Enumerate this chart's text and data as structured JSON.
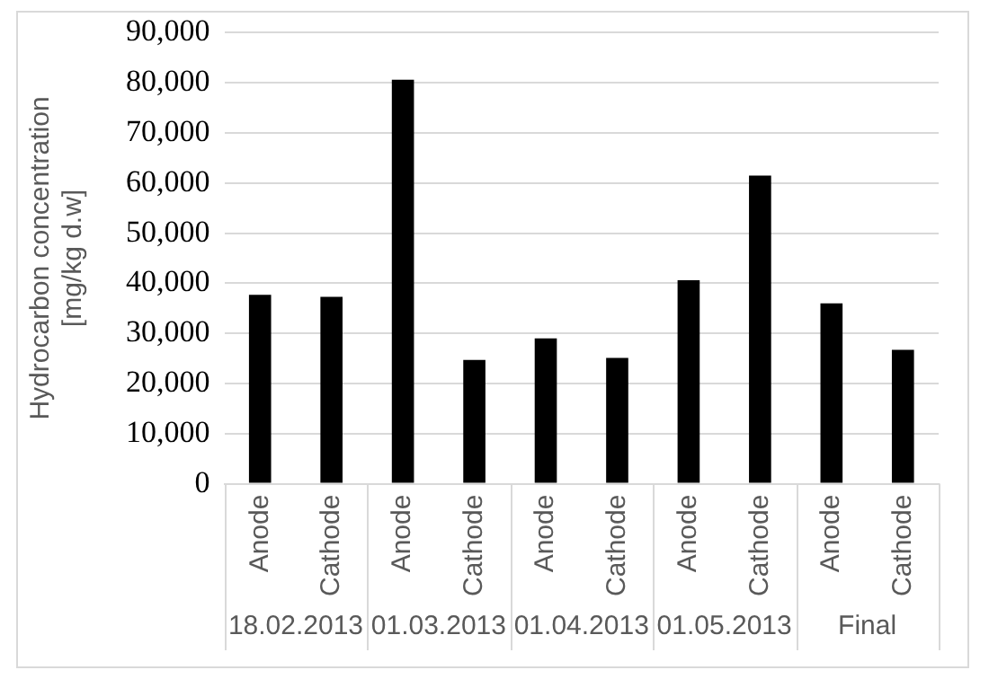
{
  "chart_data": {
    "type": "bar",
    "ylabel": "Hydrocarbon concentration\n[mg/kg d.w]",
    "categories": [
      "Anode",
      "Cathode",
      "Anode",
      "Cathode",
      "Anode",
      "Cathode",
      "Anode",
      "Cathode",
      "Anode",
      "Cathode"
    ],
    "values": [
      37700,
      37300,
      80600,
      24700,
      29000,
      25100,
      40600,
      61500,
      36000,
      26700
    ],
    "color": "#000000",
    "annotations": [
      "18.02.2013",
      "01.03.2013",
      "01.04.2013",
      "01.05.2013",
      "Final"
    ],
    "ylim": [
      0,
      90000
    ],
    "yticks": [
      0,
      {
        "value": 10000,
        "label": "10,000"
      },
      {
        "value": 20000,
        "label": "20,000"
      },
      {
        "value": 30000,
        "label": "30,000"
      },
      {
        "value": 40000,
        "label": "40,000"
      },
      {
        "value": 50000,
        "label": "50,000"
      },
      {
        "value": 60000,
        "label": "60,000"
      },
      {
        "value": 70000,
        "label": "70,000"
      },
      {
        "value": 80000,
        "label": "80,000"
      },
      {
        "value": 90000,
        "label": "90,000"
      }
    ],
    "grid": "y",
    "legend": false
  }
}
